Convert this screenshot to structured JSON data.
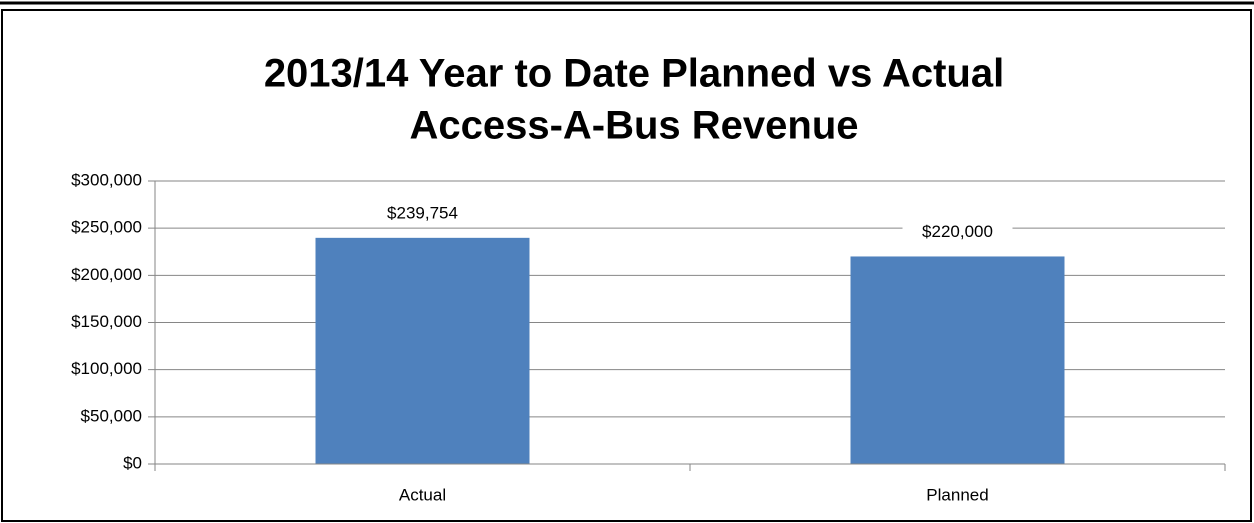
{
  "chart_data": {
    "type": "bar",
    "title": [
      "2013/14 Year to Date Planned vs Actual",
      "Access-A-Bus Revenue"
    ],
    "categories": [
      "Actual",
      "Planned"
    ],
    "values": [
      239754,
      220000
    ],
    "value_labels": [
      "$239,754",
      "$220,000"
    ],
    "color": "#4f81bd",
    "ylim": [
      0,
      300000
    ],
    "yticks": [
      {
        "value": 0,
        "label": "$0"
      },
      {
        "value": 50000,
        "label": "$50,000"
      },
      {
        "value": 100000,
        "label": "$100,000"
      },
      {
        "value": 150000,
        "label": "$150,000"
      },
      {
        "value": 200000,
        "label": "$200,000"
      },
      {
        "value": 250000,
        "label": "$250,000"
      },
      {
        "value": 300000,
        "label": "$300,000"
      }
    ],
    "grid": true
  }
}
